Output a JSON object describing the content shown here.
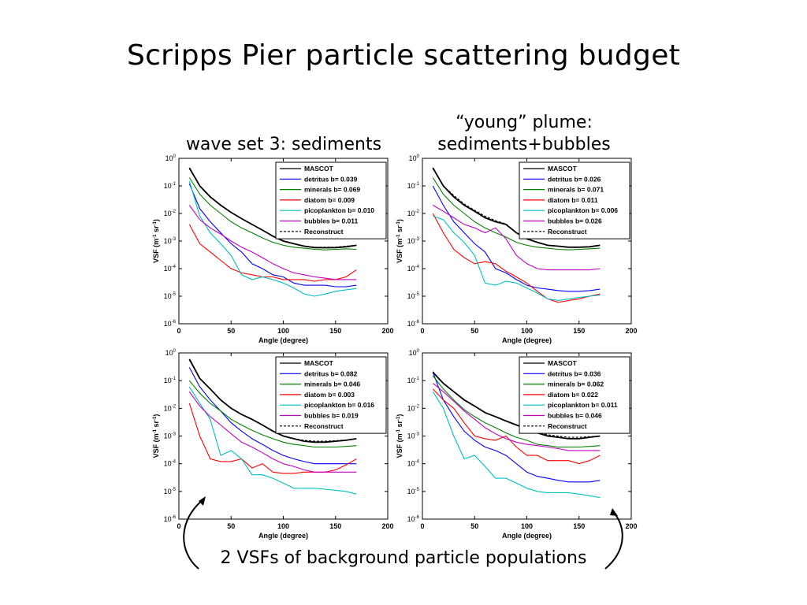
{
  "slide": {
    "title": "Scripps Pier particle scattering budget",
    "left_heading": "wave set 3: sediments",
    "right_heading_line1": "“young” plume:",
    "right_heading_line2": "sediments+bubbles",
    "bottom_note": "2 VSFs of background particle populations"
  },
  "colors": {
    "MASCOT": "#000000",
    "detritus": "#0000ff",
    "minerals": "#008000",
    "diatom": "#ff0000",
    "picoplankton": "#00bfbf",
    "bubbles": "#bf00bf",
    "Reconstruct": "#000000"
  },
  "chart_data": [
    {
      "type": "line",
      "panel": "top-left",
      "xlabel": "Angle (degree)",
      "ylabel": "VSF (m-1 sr-1)",
      "xlim": [
        0,
        200
      ],
      "ylim": [
        1e-06,
        1
      ],
      "yscale": "log",
      "xticks": [
        "0",
        "50",
        "100",
        "150",
        "200"
      ],
      "legend_position": "top-right",
      "x": [
        10,
        20,
        30,
        40,
        50,
        60,
        70,
        80,
        90,
        100,
        110,
        120,
        130,
        140,
        150,
        160,
        170
      ],
      "series": [
        {
          "name": "MASCOT",
          "style": "solid",
          "values": [
            0.45,
            0.1,
            0.04,
            0.02,
            0.011,
            0.0065,
            0.004,
            0.0025,
            0.0015,
            0.001,
            0.0008,
            0.00065,
            0.00058,
            0.00057,
            0.00058,
            0.00062,
            0.0007
          ]
        },
        {
          "name": "detritus b= 0.039",
          "style": "solid",
          "values": [
            0.12,
            0.015,
            0.005,
            0.002,
            0.0008,
            0.0004,
            0.00015,
            0.0001,
            6e-05,
            5e-05,
            3e-05,
            2.5e-05,
            2.5e-05,
            2.5e-05,
            2.2e-05,
            2.2e-05,
            2.5e-05
          ]
        },
        {
          "name": "minerals b= 0.069",
          "style": "solid",
          "values": [
            0.2,
            0.05,
            0.02,
            0.01,
            0.005,
            0.003,
            0.002,
            0.0013,
            0.0009,
            0.0007,
            0.0006,
            0.00055,
            0.0005,
            0.00048,
            0.0005,
            0.00052,
            0.0005
          ]
        },
        {
          "name": "diatom b= 0.009",
          "style": "solid",
          "values": [
            0.004,
            0.0008,
            0.0004,
            0.0002,
            0.0001,
            7e-05,
            6e-05,
            5e-05,
            5e-05,
            4e-05,
            4e-05,
            4e-05,
            3.5e-05,
            4e-05,
            4e-05,
            5e-05,
            9e-05
          ]
        },
        {
          "name": "picoplankton b= 0.010",
          "style": "solid",
          "values": [
            0.15,
            0.008,
            0.002,
            0.0008,
            0.0003,
            6e-05,
            4e-05,
            5e-05,
            4e-05,
            3e-05,
            2e-05,
            1.2e-05,
            1e-05,
            1.2e-05,
            1.5e-05,
            1.7e-05,
            1.9e-05
          ]
        },
        {
          "name": "bubbles b= 0.011",
          "style": "solid",
          "values": [
            0.02,
            0.006,
            0.003,
            0.0018,
            0.001,
            0.0006,
            0.0004,
            0.00025,
            0.00015,
            0.0001,
            7e-05,
            6e-05,
            5e-05,
            4.5e-05,
            4e-05,
            4e-05,
            4e-05
          ]
        },
        {
          "name": "Reconstruct",
          "style": "dashed",
          "values": [
            0.42,
            0.1,
            0.04,
            0.02,
            0.011,
            0.0065,
            0.004,
            0.0025,
            0.0015,
            0.001,
            0.0008,
            0.00066,
            0.0006,
            0.0006,
            0.0006,
            0.00065,
            0.0007
          ]
        }
      ]
    },
    {
      "type": "line",
      "panel": "top-right",
      "xlabel": "Angle (degree)",
      "ylabel": "VSF (m-1 sr-1)",
      "xlim": [
        0,
        200
      ],
      "ylim": [
        1e-06,
        1
      ],
      "yscale": "log",
      "xticks": [
        "0",
        "50",
        "100",
        "150",
        "200"
      ],
      "legend_position": "top-right",
      "x": [
        10,
        20,
        30,
        40,
        50,
        60,
        70,
        80,
        90,
        100,
        110,
        120,
        130,
        140,
        150,
        160,
        170
      ],
      "series": [
        {
          "name": "MASCOT",
          "style": "solid",
          "values": [
            0.45,
            0.1,
            0.04,
            0.02,
            0.012,
            0.007,
            0.005,
            0.004,
            0.002,
            0.0012,
            0.0009,
            0.0007,
            0.00065,
            0.0006,
            0.0006,
            0.00062,
            0.0007
          ]
        },
        {
          "name": "detritus b= 0.026",
          "style": "solid",
          "values": [
            0.1,
            0.02,
            0.005,
            0.002,
            0.0008,
            0.0004,
            0.0001,
            7e-05,
            4e-05,
            2.5e-05,
            2e-05,
            1.8e-05,
            1.6e-05,
            1.5e-05,
            1.5e-05,
            1.6e-05,
            1.8e-05
          ]
        },
        {
          "name": "minerals b= 0.071",
          "style": "solid",
          "values": [
            0.2,
            0.05,
            0.02,
            0.01,
            0.005,
            0.003,
            0.002,
            0.0014,
            0.0009,
            0.0007,
            0.0006,
            0.00055,
            0.0005,
            0.00048,
            0.0005,
            0.00052,
            0.00055
          ]
        },
        {
          "name": "diatom b= 0.011",
          "style": "solid",
          "values": [
            0.01,
            0.002,
            0.0005,
            0.00025,
            0.00015,
            0.00018,
            0.00015,
            8e-05,
            5e-05,
            3e-05,
            1.5e-05,
            8e-06,
            6e-06,
            7e-06,
            8e-06,
            1e-05,
            1.2e-05
          ]
        },
        {
          "name": "picoplankton b= 0.006",
          "style": "solid",
          "values": [
            0.008,
            0.006,
            0.002,
            0.0009,
            0.0003,
            3e-05,
            2.5e-05,
            3.5e-05,
            3e-05,
            2e-05,
            1.3e-05,
            8e-06,
            7e-06,
            8e-06,
            9e-06,
            1e-05,
            1.1e-05
          ]
        },
        {
          "name": "bubbles b= 0.026",
          "style": "solid",
          "values": [
            0.02,
            0.012,
            0.007,
            0.004,
            0.003,
            0.002,
            0.003,
            0.0012,
            0.0003,
            0.00015,
            0.0001,
            9e-05,
            9e-05,
            9e-05,
            9e-05,
            9e-05,
            0.0001
          ]
        },
        {
          "name": "Reconstruct",
          "style": "dashed",
          "values": [
            0.42,
            0.1,
            0.045,
            0.022,
            0.013,
            0.008,
            0.0055,
            0.0042,
            0.002,
            0.0012,
            0.0009,
            0.0007,
            0.00065,
            0.0006,
            0.0006,
            0.00063,
            0.0007
          ]
        }
      ]
    },
    {
      "type": "line",
      "panel": "bottom-left",
      "xlabel": "Angle (degree)",
      "ylabel": "VSF (m-1 sr-1)",
      "xlim": [
        0,
        200
      ],
      "ylim": [
        1e-06,
        1
      ],
      "yscale": "log",
      "xticks": [
        "0",
        "50",
        "100",
        "150",
        "200"
      ],
      "legend_position": "top-right",
      "x": [
        10,
        20,
        30,
        40,
        50,
        60,
        70,
        80,
        90,
        100,
        110,
        120,
        130,
        140,
        150,
        160,
        170
      ],
      "series": [
        {
          "name": "MASCOT",
          "style": "solid",
          "values": [
            0.6,
            0.12,
            0.05,
            0.02,
            0.01,
            0.006,
            0.004,
            0.0025,
            0.0015,
            0.001,
            0.0008,
            0.00065,
            0.0006,
            0.0006,
            0.00065,
            0.0007,
            0.0008
          ]
        },
        {
          "name": "detritus b= 0.082",
          "style": "solid",
          "values": [
            0.3,
            0.06,
            0.02,
            0.008,
            0.003,
            0.0015,
            0.0008,
            0.0005,
            0.0003,
            0.0002,
            0.00015,
            0.00012,
            0.0001,
            0.0001,
            0.0001,
            0.0001,
            0.0001
          ]
        },
        {
          "name": "minerals b= 0.046",
          "style": "solid",
          "values": [
            0.1,
            0.035,
            0.015,
            0.008,
            0.004,
            0.0025,
            0.0016,
            0.0011,
            0.0008,
            0.0006,
            0.0005,
            0.00045,
            0.0004,
            0.0004,
            0.0004,
            0.00042,
            0.00045
          ]
        },
        {
          "name": "diatom b= 0.003",
          "style": "solid",
          "values": [
            0.015,
            0.001,
            0.00015,
            0.00012,
            0.00012,
            0.00015,
            7e-05,
            0.0001,
            5e-05,
            4.5e-05,
            4.5e-05,
            5e-05,
            5e-05,
            5e-05,
            6e-05,
            9e-05,
            0.00015
          ]
        },
        {
          "name": "picoplankton b= 0.016",
          "style": "solid",
          "values": [
            0.06,
            0.015,
            0.004,
            0.0002,
            0.0003,
            0.00015,
            4e-05,
            4e-05,
            3e-05,
            2e-05,
            1.3e-05,
            1.3e-05,
            1.3e-05,
            1.2e-05,
            1.1e-05,
            1e-05,
            8e-06
          ]
        },
        {
          "name": "bubbles b= 0.019",
          "style": "solid",
          "values": [
            0.04,
            0.012,
            0.005,
            0.0025,
            0.0012,
            0.0006,
            0.0004,
            0.00025,
            0.00015,
            0.0001,
            8e-05,
            6e-05,
            5e-05,
            5e-05,
            5e-05,
            5e-05,
            5e-05
          ]
        },
        {
          "name": "Reconstruct",
          "style": "dashed",
          "values": [
            0.55,
            0.12,
            0.05,
            0.02,
            0.01,
            0.006,
            0.004,
            0.0025,
            0.0015,
            0.001,
            0.0008,
            0.0007,
            0.00065,
            0.00065,
            0.00068,
            0.00072,
            0.0008
          ]
        }
      ]
    },
    {
      "type": "line",
      "panel": "bottom-right",
      "xlabel": "Angle (degree)",
      "ylabel": "VSF (m-1 sr-1)",
      "xlim": [
        0,
        200
      ],
      "ylim": [
        1e-06,
        1
      ],
      "yscale": "log",
      "xticks": [
        "0",
        "50",
        "100",
        "150",
        "200"
      ],
      "legend_position": "top-right",
      "x": [
        10,
        20,
        30,
        40,
        50,
        60,
        70,
        80,
        90,
        100,
        110,
        120,
        130,
        140,
        150,
        160,
        170
      ],
      "series": [
        {
          "name": "MASCOT",
          "style": "solid",
          "values": [
            0.2,
            0.08,
            0.04,
            0.02,
            0.012,
            0.007,
            0.005,
            0.0035,
            0.0025,
            0.0018,
            0.0013,
            0.001,
            0.0009,
            0.0008,
            0.0008,
            0.0009,
            0.001
          ]
        },
        {
          "name": "detritus b= 0.036",
          "style": "solid",
          "values": [
            0.2,
            0.02,
            0.005,
            0.0015,
            0.0007,
            0.0004,
            0.0003,
            0.0002,
            0.0001,
            5e-05,
            3.5e-05,
            3e-05,
            2.5e-05,
            2.2e-05,
            2.2e-05,
            2.2e-05,
            2.5e-05
          ]
        },
        {
          "name": "minerals b= 0.062",
          "style": "solid",
          "values": [
            0.15,
            0.05,
            0.02,
            0.009,
            0.005,
            0.003,
            0.002,
            0.0013,
            0.0009,
            0.0007,
            0.0005,
            0.00045,
            0.0004,
            0.0004,
            0.0004,
            0.00042,
            0.00045
          ]
        },
        {
          "name": "diatom b= 0.022",
          "style": "solid",
          "values": [
            0.05,
            0.02,
            0.01,
            0.003,
            0.001,
            0.0008,
            0.0007,
            0.001,
            0.0004,
            0.0002,
            0.0002,
            0.00013,
            0.00013,
            0.00013,
            0.0001,
            0.00013,
            0.0002
          ]
        },
        {
          "name": "picoplankton b= 0.011",
          "style": "solid",
          "values": [
            0.04,
            0.01,
            0.001,
            0.00015,
            0.0002,
            8e-05,
            3e-05,
            3e-05,
            2e-05,
            1.3e-05,
            1e-05,
            9e-06,
            9e-06,
            9e-06,
            8e-06,
            7e-06,
            6e-06
          ]
        },
        {
          "name": "bubbles b= 0.046",
          "style": "solid",
          "values": [
            0.08,
            0.04,
            0.018,
            0.008,
            0.004,
            0.002,
            0.0012,
            0.0008,
            0.0006,
            0.0005,
            0.00045,
            0.0004,
            0.00035,
            0.0003,
            0.0003,
            0.0003,
            0.0003
          ]
        },
        {
          "name": "Reconstruct",
          "style": "dashed",
          "values": [
            0.21,
            0.08,
            0.04,
            0.021,
            0.012,
            0.007,
            0.005,
            0.0035,
            0.0025,
            0.0018,
            0.0014,
            0.0011,
            0.001,
            0.0009,
            0.0009,
            0.00095,
            0.001
          ]
        }
      ]
    }
  ]
}
